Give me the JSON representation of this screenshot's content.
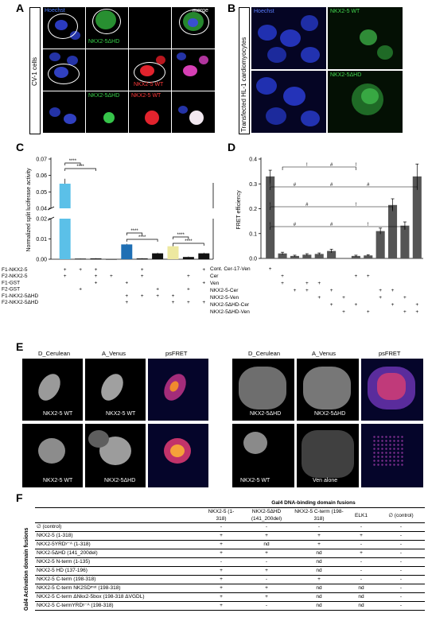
{
  "panels": {
    "A": {
      "letter": "A",
      "side_label": "CV-1 cells",
      "labels": {
        "hoechst": "Hoechst",
        "merge": "merge",
        "r1": "NKX2-5ΔHD",
        "r2": "NKX2-5 WT",
        "r3a": "NKX2-5ΔHD",
        "r3b": "NKX2-5 WT"
      }
    },
    "B": {
      "letter": "B",
      "side_label": "Transfected HL-1 cardiomyocytes",
      "labels": {
        "hoechst": "Hoechst",
        "wt": "NKX2-5 WT",
        "dhd": "NKX2-5ΔHD"
      }
    },
    "C": {
      "letter": "C"
    },
    "D": {
      "letter": "D"
    },
    "E": {
      "letter": "E",
      "headers": [
        "D_Cerulean",
        "A_Venus",
        "psFRET"
      ],
      "left_labels": {
        "r1a": "NKX2-5 WT",
        "r1b": "NKX2-5 WT",
        "r2a": "NKX2-5 WT",
        "r2b": "NKX2-5ΔHD"
      },
      "right_labels": {
        "r1a": "NKX2-5ΔHD",
        "r1b": "NKX2-5ΔHD",
        "r2a": "NKX2-5 WT",
        "r2b": "Ven alone"
      }
    },
    "F": {
      "letter": "F",
      "title": "Gal4 DNA-binding domain fusions",
      "side_label": "Gal4 Activation domain fusions",
      "columns": [
        "NKX2-5 (1-318)",
        "NKX2-5ΔHD (141_200del)",
        "NKX2-5 C-term (198-318)",
        "ELK1",
        "∅ (control)"
      ],
      "rows": [
        {
          "label": "∅ (control)",
          "cells": [
            "-",
            "-",
            "-",
            "-",
            "-"
          ]
        },
        {
          "label": "NKX2-5 (1-318)",
          "cells": [
            "+",
            "+",
            "+",
            "+",
            "-"
          ]
        },
        {
          "label": "NKX2-5YRDʸ⁻ᴬ (1-318)",
          "cells": [
            "+",
            "nd",
            "+",
            "-",
            "-"
          ]
        },
        {
          "label": "NKX2-5ΔHD (141_200del)",
          "cells": [
            "+",
            "+",
            "nd",
            "+",
            "-"
          ]
        },
        {
          "label": "NKX2-5 N-term (1-135)",
          "cells": [
            "-",
            "-",
            "nd",
            "-",
            "-"
          ]
        },
        {
          "label": "NKX2-5 HD (137-196)",
          "cells": [
            "+",
            "+",
            "nd",
            "-",
            "-"
          ]
        },
        {
          "label": "NKX2-5 C-term (198-318)",
          "cells": [
            "+",
            "-",
            "+",
            "-",
            "-"
          ]
        },
        {
          "label": "NKX2-5 C-term NK2SDᵐᵘᵗ (198-318)",
          "cells": [
            "+",
            "+",
            "nd",
            "nd",
            "-"
          ]
        },
        {
          "label": "NKX2-5 C-term ΔNkx2-5box (198-318 ΔVGDL)",
          "cells": [
            "+",
            "+",
            "nd",
            "nd",
            "-"
          ]
        },
        {
          "label": "NKX2-5 C-termYRDʸ⁻ᴬ (198-318)",
          "cells": [
            "+",
            "-",
            "nd",
            "nd",
            "-"
          ]
        }
      ]
    }
  },
  "chart_data": [
    {
      "panel": "C",
      "type": "bar",
      "ylabel": "Normalized split luciferase activity",
      "ylim": [
        0,
        0.07
      ],
      "axis_break": [
        0.02,
        0.04
      ],
      "yticks_lower": [
        "0.00",
        "0.01",
        "0.02"
      ],
      "yticks_upper": [
        "0.04",
        "0.05",
        "0.06",
        "0.07"
      ],
      "values": [
        0.055,
        0.0003,
        0.0004,
        0.0,
        0.0073,
        0.0004,
        0.0029,
        0.0064,
        0.0011,
        0.0029
      ],
      "errors": [
        0.003,
        0.0001,
        0.0001,
        0.0,
        0.0003,
        0.0001,
        0.0003,
        0.0004,
        0.0002,
        0.0003
      ],
      "bar_colors": [
        "#5bc0e8",
        "#111111",
        "#111111",
        "#111111",
        "#1f6fb4",
        "#111111",
        "#111111",
        "#ede8a0",
        "#111111",
        "#111111"
      ],
      "significance": [
        {
          "from": 0,
          "to": 1,
          "label": "****"
        },
        {
          "from": 0,
          "to": 2,
          "label": "****"
        },
        {
          "from": 4,
          "to": 5,
          "label": "****"
        },
        {
          "from": 4,
          "to": 6,
          "label": "****"
        },
        {
          "from": 7,
          "to": 8,
          "label": "****"
        },
        {
          "from": 7,
          "to": 9,
          "label": "****"
        }
      ],
      "conditions": [
        "F1-NKX2-5",
        "F2-NKX2-5",
        "F1-GST",
        "F2-GST",
        "F1-NKX2-5ΔHD",
        "F2-NKX2-5ΔHD"
      ],
      "matrix": [
        [
          "+",
          "+",
          "+",
          "",
          "",
          "+",
          "",
          "",
          "",
          "+"
        ],
        [
          "+",
          "",
          "+",
          "+",
          "",
          "+",
          "",
          "",
          "+",
          ""
        ],
        [
          "",
          "",
          "+",
          "",
          "+",
          "",
          "",
          "",
          "",
          "+"
        ],
        [
          "",
          "+",
          "",
          "",
          "",
          "",
          "+",
          "",
          "+",
          ""
        ],
        [
          "",
          "",
          "",
          "",
          "+",
          "+",
          "+",
          "+",
          "",
          ""
        ],
        [
          "",
          "",
          "",
          "",
          "+",
          "",
          "",
          "+",
          "+",
          "+"
        ]
      ]
    },
    {
      "panel": "D",
      "type": "bar",
      "ylabel": "FRET efficiency",
      "ylim": [
        0,
        0.4
      ],
      "yticks": [
        "0.0",
        "0.1",
        "0.2",
        "0.3",
        "0.4"
      ],
      "values": [
        0.33,
        0.02,
        0.01,
        0.015,
        0.018,
        0.03,
        0.0,
        0.01,
        0.012,
        0.11,
        0.215,
        0.132,
        0.33
      ],
      "errors": [
        0.025,
        0.005,
        0.003,
        0.004,
        0.004,
        0.007,
        0.0,
        0.003,
        0.003,
        0.012,
        0.025,
        0.015,
        0.05
      ],
      "bar_colors": [
        "#555555"
      ],
      "significance_marks": [
        "!",
        "#"
      ],
      "conditions": [
        "Cont. Cer-17-Ven",
        "Cer",
        "Ven",
        "NKX2-5-Cer",
        "NKX2-5-Ven",
        "NKX2-5ΔHD-Cer",
        "NKX2-5ΔHD-Ven"
      ],
      "matrix": [
        [
          "+",
          "",
          "",
          "",
          "",
          "",
          "",
          "",
          "",
          "",
          "",
          "",
          ""
        ],
        [
          "",
          "+",
          "",
          "",
          "",
          "",
          "",
          "+",
          "+",
          "",
          "",
          "",
          ""
        ],
        [
          "",
          "+",
          "",
          "+",
          "+",
          "",
          "",
          "",
          "",
          "",
          "",
          "",
          ""
        ],
        [
          "",
          "",
          "+",
          "+",
          "",
          "+",
          "",
          "",
          "",
          "+",
          "+",
          "",
          ""
        ],
        [
          "",
          "",
          "",
          "",
          "+",
          "",
          "+",
          "",
          "",
          "+",
          "",
          "+",
          ""
        ],
        [
          "",
          "",
          "",
          "",
          "",
          "+",
          "",
          "+",
          "",
          "",
          "+",
          "",
          "+"
        ],
        [
          "",
          "",
          "",
          "",
          "",
          "",
          "+",
          "",
          "+",
          "",
          "",
          "+",
          "+"
        ]
      ]
    }
  ]
}
